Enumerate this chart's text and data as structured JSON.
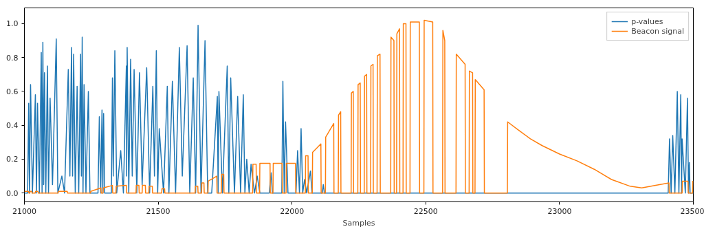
{
  "chart_data": {
    "type": "line",
    "xlabel": "Samples",
    "xlim": [
      21000,
      23500
    ],
    "xticks": [
      21000,
      21500,
      22000,
      22500,
      23000,
      23500
    ],
    "ylim": [
      -0.052,
      1.093
    ],
    "yticks": [
      {
        "value": 0,
        "label": "0.0"
      },
      {
        "value": 0.2,
        "label": "0.2"
      },
      {
        "value": 0.4,
        "label": "0.4"
      },
      {
        "value": 0.6,
        "label": "0.6"
      },
      {
        "value": 0.8,
        "label": "0.8"
      },
      {
        "value": 1.0,
        "label": "1.0"
      }
    ],
    "grid": false,
    "legend": "top right",
    "line_style": "solid",
    "series": [
      {
        "name": "p-values",
        "color": "#1f77b4",
        "x": [
          21000,
          21012,
          21016,
          21019,
          21023,
          21030,
          21041,
          21045,
          21049,
          21056,
          21063,
          21066,
          21069,
          21072,
          21075,
          21080,
          21086,
          21090,
          21096,
          21105,
          21119,
          21125,
          21140,
          21150,
          21164,
          21170,
          21176,
          21180,
          21184,
          21190,
          21197,
          21203,
          21210,
          21213,
          21216,
          21219,
          21223,
          21230,
          21239,
          21245,
          21275,
          21280,
          21285,
          21290,
          21293,
          21296,
          21300,
          21325,
          21329,
          21332,
          21338,
          21345,
          21360,
          21370,
          21381,
          21382,
          21384,
          21390,
          21397,
          21403,
          21410,
          21420,
          21430,
          21440,
          21457,
          21468,
          21480,
          21486,
          21493,
          21498,
          21504,
          21520,
          21534,
          21540,
          21553,
          21565,
          21579,
          21590,
          21608,
          21618,
          21631,
          21640,
          21649,
          21660,
          21675,
          21685,
          21700,
          21721,
          21724,
          21727,
          21740,
          21758,
          21764,
          21771,
          21785,
          21797,
          21808,
          21818,
          21824,
          21831,
          21840,
          21847,
          21852,
          21860,
          21870,
          21880,
          21915,
          21922,
          21927,
          21962,
          21966,
          21971,
          21976,
          21985,
          22015,
          22021,
          22028,
          22034,
          22040,
          22047,
          22055,
          22069,
          22075,
          22113,
          22117,
          22121,
          23406,
          23411,
          23417,
          23423,
          23431,
          23440,
          23446,
          23453,
          23456,
          23458,
          23470,
          23478,
          23482,
          23485,
          23488,
          23500
        ],
        "values": [
          0,
          0,
          0.53,
          0,
          0.64,
          0,
          0.58,
          0,
          0.53,
          0,
          0.83,
          0,
          0.89,
          0.05,
          0.71,
          0,
          0.75,
          0,
          0.56,
          0.05,
          0.91,
          0,
          0.1,
          0,
          0.73,
          0.1,
          0.86,
          0.1,
          0.82,
          0,
          0.63,
          0,
          0.82,
          0.1,
          0.92,
          0,
          0.64,
          0,
          0.6,
          0,
          0,
          0.45,
          0,
          0.49,
          0,
          0.47,
          0,
          0,
          0.68,
          0.1,
          0.84,
          0,
          0.25,
          0,
          0.75,
          0.1,
          0.86,
          0,
          0.79,
          0.1,
          0.73,
          0,
          0.71,
          0.05,
          0.74,
          0,
          0.63,
          0.1,
          0.84,
          0,
          0.38,
          0,
          0.63,
          0,
          0.66,
          0,
          0.86,
          0.1,
          0.87,
          0,
          0.68,
          0,
          0.99,
          0,
          0.9,
          0,
          0,
          0.57,
          0,
          0.6,
          0,
          0.75,
          0,
          0.68,
          0,
          0.57,
          0,
          0.58,
          0,
          0.2,
          0,
          0.17,
          0.1,
          0,
          0.1,
          0,
          0,
          0.12,
          0,
          0,
          0.66,
          0,
          0.42,
          0,
          0,
          0.25,
          0,
          0.38,
          0,
          0.08,
          0,
          0.13,
          0,
          0,
          0.05,
          0,
          0,
          0.32,
          0,
          0.34,
          0,
          0.6,
          0,
          0.58,
          0,
          0.32,
          0,
          0.56,
          0,
          0.18,
          0,
          0
        ]
      },
      {
        "name": "Beacon signal",
        "color": "#ff7f0e",
        "x": [
          21000,
          21015,
          21017,
          21020,
          21022,
          21027,
          21029,
          21040,
          21042,
          21050,
          21052,
          21126,
          21127,
          21160,
          21161,
          21247,
          21248,
          21286,
          21287,
          21294,
          21295,
          21329,
          21330,
          21342,
          21343,
          21381,
          21382,
          21417,
          21418,
          21428,
          21429,
          21440,
          21441,
          21452,
          21453,
          21465,
          21466,
          21478,
          21479,
          21513,
          21514,
          21524,
          21525,
          21638,
          21639,
          21648,
          21649,
          21662,
          21663,
          21671,
          21672,
          21686,
          21687,
          21719,
          21720,
          21736,
          21737,
          21745,
          21746,
          21853,
          21854,
          21866,
          21867,
          21879,
          21880,
          21918,
          21919,
          21929,
          21930,
          21963,
          21964,
          21978,
          21979,
          22013,
          22014,
          22050,
          22051,
          22060,
          22061,
          22076,
          22077,
          22108,
          22109,
          22125,
          22126,
          22156,
          22157,
          22173,
          22174,
          22182,
          22183,
          22221,
          22222,
          22229,
          22230,
          22246,
          22247,
          22255,
          22256,
          22270,
          22271,
          22279,
          22280,
          22294,
          22295,
          22303,
          22304,
          22318,
          22319,
          22329,
          22330,
          22369,
          22370,
          22381,
          22382,
          22391,
          22392,
          22402,
          22403,
          22415,
          22416,
          22426,
          22427,
          22441,
          22442,
          22476,
          22477,
          22493,
          22494,
          22526,
          22527,
          22563,
          22564,
          22571,
          22572,
          22613,
          22614,
          22647,
          22648,
          22662,
          22663,
          22675,
          22676,
          22684,
          22685,
          22718,
          22719,
          22805,
          22806,
          22848,
          22891,
          22935,
          23000,
          23065,
          23130,
          23194,
          23264,
          23307,
          23359,
          23409,
          23410,
          23458,
          23459,
          23480,
          23481,
          23497,
          23498,
          23500
        ],
        "values": [
          0.01,
          0.01,
          0,
          0,
          0.01,
          0.01,
          0,
          0,
          0.01,
          0.01,
          0,
          0,
          0.01,
          0.01,
          0,
          0,
          0.01,
          0.03,
          0,
          0,
          0.03,
          0.045,
          0,
          0,
          0.04,
          0.045,
          0,
          0,
          0.045,
          0.045,
          0,
          0,
          0.045,
          0.045,
          0,
          0,
          0.04,
          0.04,
          0,
          0,
          0.025,
          0.025,
          0,
          0,
          0.04,
          0.04,
          0,
          0,
          0.06,
          0.06,
          0,
          0,
          0.07,
          0.1,
          0,
          0,
          0.11,
          0.11,
          0,
          0,
          0.17,
          0.17,
          0,
          0,
          0.175,
          0.175,
          0,
          0,
          0.175,
          0.175,
          0,
          0,
          0.175,
          0.175,
          0,
          0,
          0.22,
          0.22,
          0,
          0,
          0.24,
          0.29,
          0,
          0,
          0.33,
          0.41,
          0,
          0,
          0.46,
          0.48,
          0,
          0,
          0.59,
          0.6,
          0,
          0,
          0.64,
          0.65,
          0,
          0,
          0.69,
          0.7,
          0,
          0,
          0.75,
          0.76,
          0,
          0,
          0.81,
          0.82,
          0,
          0,
          0.92,
          0.9,
          0,
          0,
          0.94,
          0.97,
          0,
          0,
          1.0,
          1.0,
          0,
          0,
          1.01,
          1.01,
          0,
          0,
          1.02,
          1.01,
          0,
          0,
          0.96,
          0.9,
          0,
          0,
          0.82,
          0.76,
          0,
          0,
          0.72,
          0.71,
          0,
          0,
          0.67,
          0.61,
          0,
          0,
          0.42,
          0.37,
          0.32,
          0.28,
          0.23,
          0.19,
          0.14,
          0.08,
          0.04,
          0.03,
          0.045,
          0.06,
          0,
          0,
          0.07,
          0.07,
          0,
          0,
          0.07,
          0.07
        ]
      }
    ]
  }
}
